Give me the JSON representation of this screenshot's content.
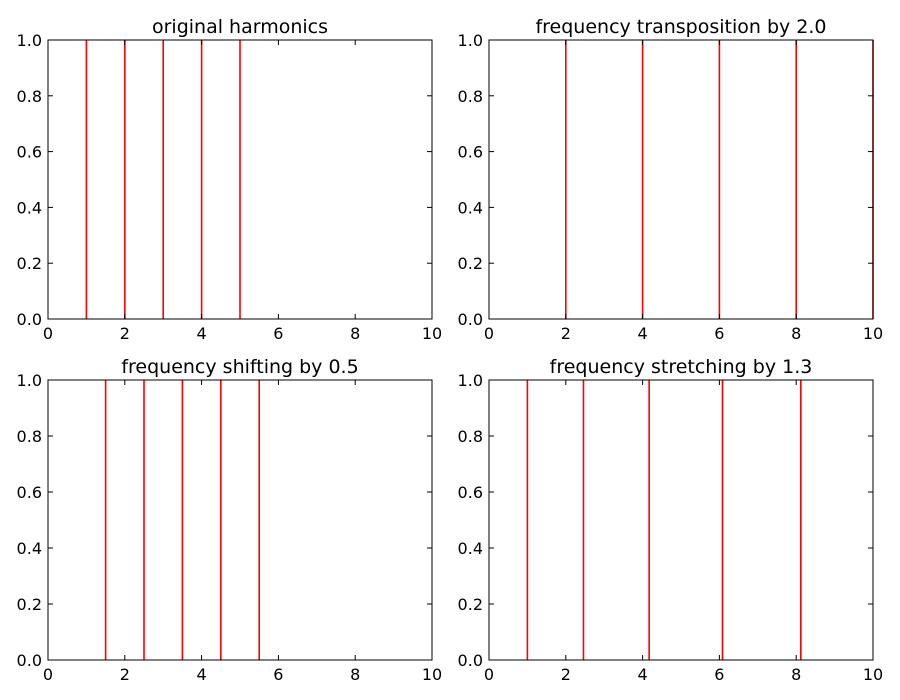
{
  "chart_data": [
    {
      "type": "line",
      "title": "original harmonics",
      "xlabel": "",
      "ylabel": "",
      "xlim": [
        0,
        10
      ],
      "ylim": [
        0.0,
        1.0
      ],
      "xticks": [
        "0",
        "2",
        "4",
        "6",
        "8",
        "10"
      ],
      "yticks": [
        "0.0",
        "0.2",
        "0.4",
        "0.6",
        "0.8",
        "1.0"
      ],
      "grid": false,
      "lines_x": [
        1,
        2,
        3,
        4,
        5
      ],
      "line_color": "#ff0000"
    },
    {
      "type": "line",
      "title": "frequency transposition by 2.0",
      "xlabel": "",
      "ylabel": "",
      "xlim": [
        0,
        10
      ],
      "ylim": [
        0.0,
        1.0
      ],
      "xticks": [
        "0",
        "2",
        "4",
        "6",
        "8",
        "10"
      ],
      "yticks": [
        "0.0",
        "0.2",
        "0.4",
        "0.6",
        "0.8",
        "1.0"
      ],
      "grid": false,
      "lines_x": [
        2,
        4,
        6,
        8,
        10
      ],
      "line_color": "#ff0000"
    },
    {
      "type": "line",
      "title": "frequency shifting by 0.5",
      "xlabel": "",
      "ylabel": "",
      "xlim": [
        0,
        10
      ],
      "ylim": [
        0.0,
        1.0
      ],
      "xticks": [
        "0",
        "2",
        "4",
        "6",
        "8",
        "10"
      ],
      "yticks": [
        "0.0",
        "0.2",
        "0.4",
        "0.6",
        "0.8",
        "1.0"
      ],
      "grid": false,
      "lines_x": [
        1.5,
        2.5,
        3.5,
        4.5,
        5.5
      ],
      "line_color": "#ff0000"
    },
    {
      "type": "line",
      "title": "frequency stretching by 1.3",
      "xlabel": "",
      "ylabel": "",
      "xlim": [
        0,
        10
      ],
      "ylim": [
        0.0,
        1.0
      ],
      "xticks": [
        "0",
        "2",
        "4",
        "6",
        "8",
        "10"
      ],
      "yticks": [
        "0.0",
        "0.2",
        "0.4",
        "0.6",
        "0.8",
        "1.0"
      ],
      "grid": false,
      "lines_x": [
        1.0,
        2.46,
        4.17,
        6.08,
        8.12
      ],
      "line_color": "#ff0000"
    }
  ]
}
